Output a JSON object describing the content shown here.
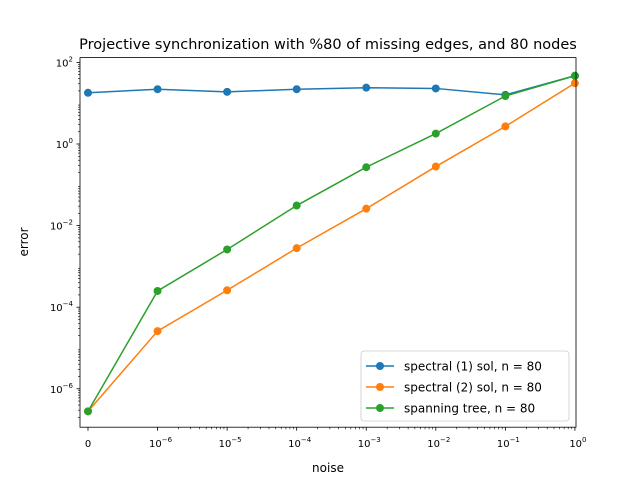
{
  "chart_data": {
    "type": "line",
    "title": "Projective synchronization with %80 of missing edges, and 80 nodes",
    "xlabel": "noise",
    "ylabel": "error",
    "y_scale": "log",
    "ylim_log10": [
      -7.0,
      2.0
    ],
    "x_categories": [
      {
        "base": "0",
        "exp": ""
      },
      {
        "base": "10",
        "exp": "−6"
      },
      {
        "base": "10",
        "exp": "−5"
      },
      {
        "base": "10",
        "exp": "−4"
      },
      {
        "base": "10",
        "exp": "−3"
      },
      {
        "base": "10",
        "exp": "−2"
      },
      {
        "base": "10",
        "exp": "−1"
      },
      {
        "base": "10",
        "exp": "0"
      }
    ],
    "y_ticks": [
      {
        "log10": 2,
        "base": "10",
        "exp": "2"
      },
      {
        "log10": 0,
        "base": "10",
        "exp": "0"
      },
      {
        "log10": -2,
        "base": "10",
        "exp": "−2"
      },
      {
        "log10": -4,
        "base": "10",
        "exp": "−4"
      },
      {
        "log10": -6,
        "base": "10",
        "exp": "−6"
      }
    ],
    "series": [
      {
        "name": "spectral (1) sol, n = 80",
        "color": "#1f77b4",
        "values": [
          18,
          22,
          19,
          22,
          24,
          23,
          16,
          47
        ]
      },
      {
        "name": "spectral (2) sol, n = 80",
        "color": "#ff7f0e",
        "values": [
          2.8e-07,
          2.6e-05,
          0.00026,
          0.0028,
          0.026,
          0.28,
          2.7,
          31
        ]
      },
      {
        "name": "spanning tree, n = 80",
        "color": "#2ca02c",
        "values": [
          2.8e-07,
          0.00025,
          0.0026,
          0.031,
          0.27,
          1.8,
          15,
          47
        ]
      }
    ],
    "grid": false,
    "legend_position": "lower right"
  }
}
